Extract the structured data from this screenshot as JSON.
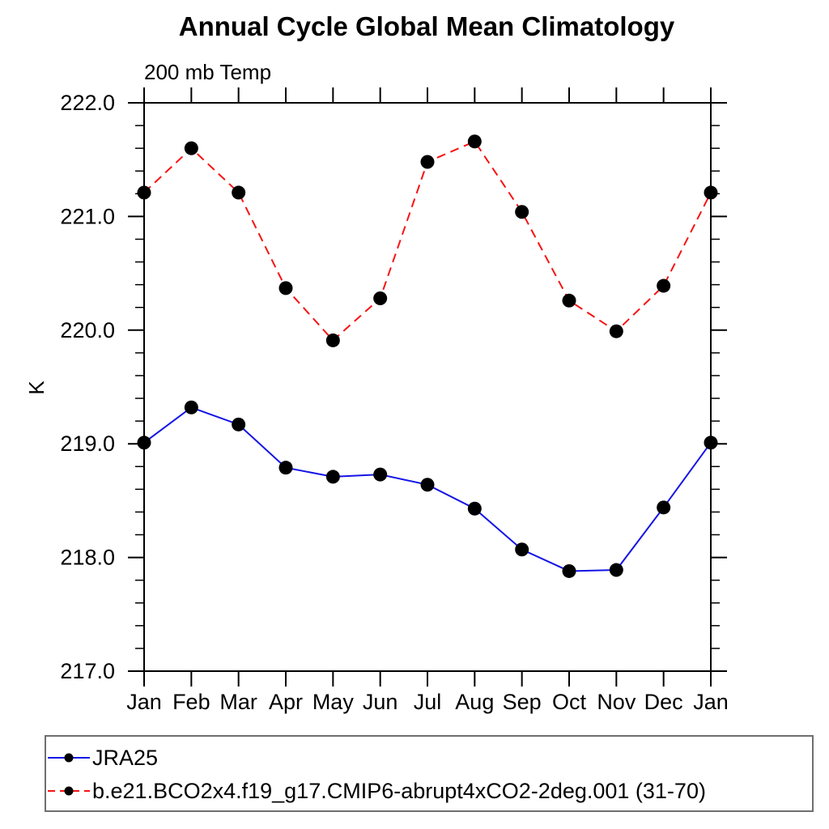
{
  "chart": {
    "title": "Annual Cycle Global Mean Climatology",
    "subtitle": "200 mb Temp",
    "y_axis_label": "K"
  },
  "chart_data": {
    "type": "line",
    "title": "Annual Cycle Global Mean Climatology",
    "subtitle": "200 mb Temp",
    "xlabel": "",
    "ylabel": "K",
    "categories": [
      "Jan",
      "Feb",
      "Mar",
      "Apr",
      "May",
      "Jun",
      "Jul",
      "Aug",
      "Sep",
      "Oct",
      "Nov",
      "Dec",
      "Jan"
    ],
    "ylim": [
      217.0,
      222.0
    ],
    "ytick_major_values": [
      222.0,
      221.0,
      220.0,
      219.0,
      218.0,
      217.0
    ],
    "ytick_major_labels": [
      "222.0",
      "221.0",
      "220.0",
      "219.0",
      "218.0",
      "217.0"
    ],
    "ytick_minor_step": 0.2,
    "grid": "off",
    "legend_position": "bottom-left boxed",
    "frame_color": "#000000",
    "series": [
      {
        "name": "JRA25",
        "line_color": "#1414e6",
        "line_style": "solid",
        "marker": "filled-circle",
        "marker_color": "#000000",
        "values": [
          219.01,
          219.32,
          219.17,
          218.79,
          218.71,
          218.73,
          218.64,
          218.43,
          218.07,
          217.88,
          217.89,
          218.44,
          219.01
        ]
      },
      {
        "name": "b.e21.BCO2x4.f19_g17.CMIP6-abrupt4xCO2-2deg.001 (31-70)",
        "line_color": "#f81212",
        "line_style": "dashed",
        "marker": "filled-circle",
        "marker_color": "#000000",
        "values": [
          221.21,
          221.6,
          221.21,
          220.37,
          219.91,
          220.28,
          221.48,
          221.66,
          221.04,
          220.26,
          219.99,
          220.39,
          221.21
        ]
      }
    ]
  }
}
